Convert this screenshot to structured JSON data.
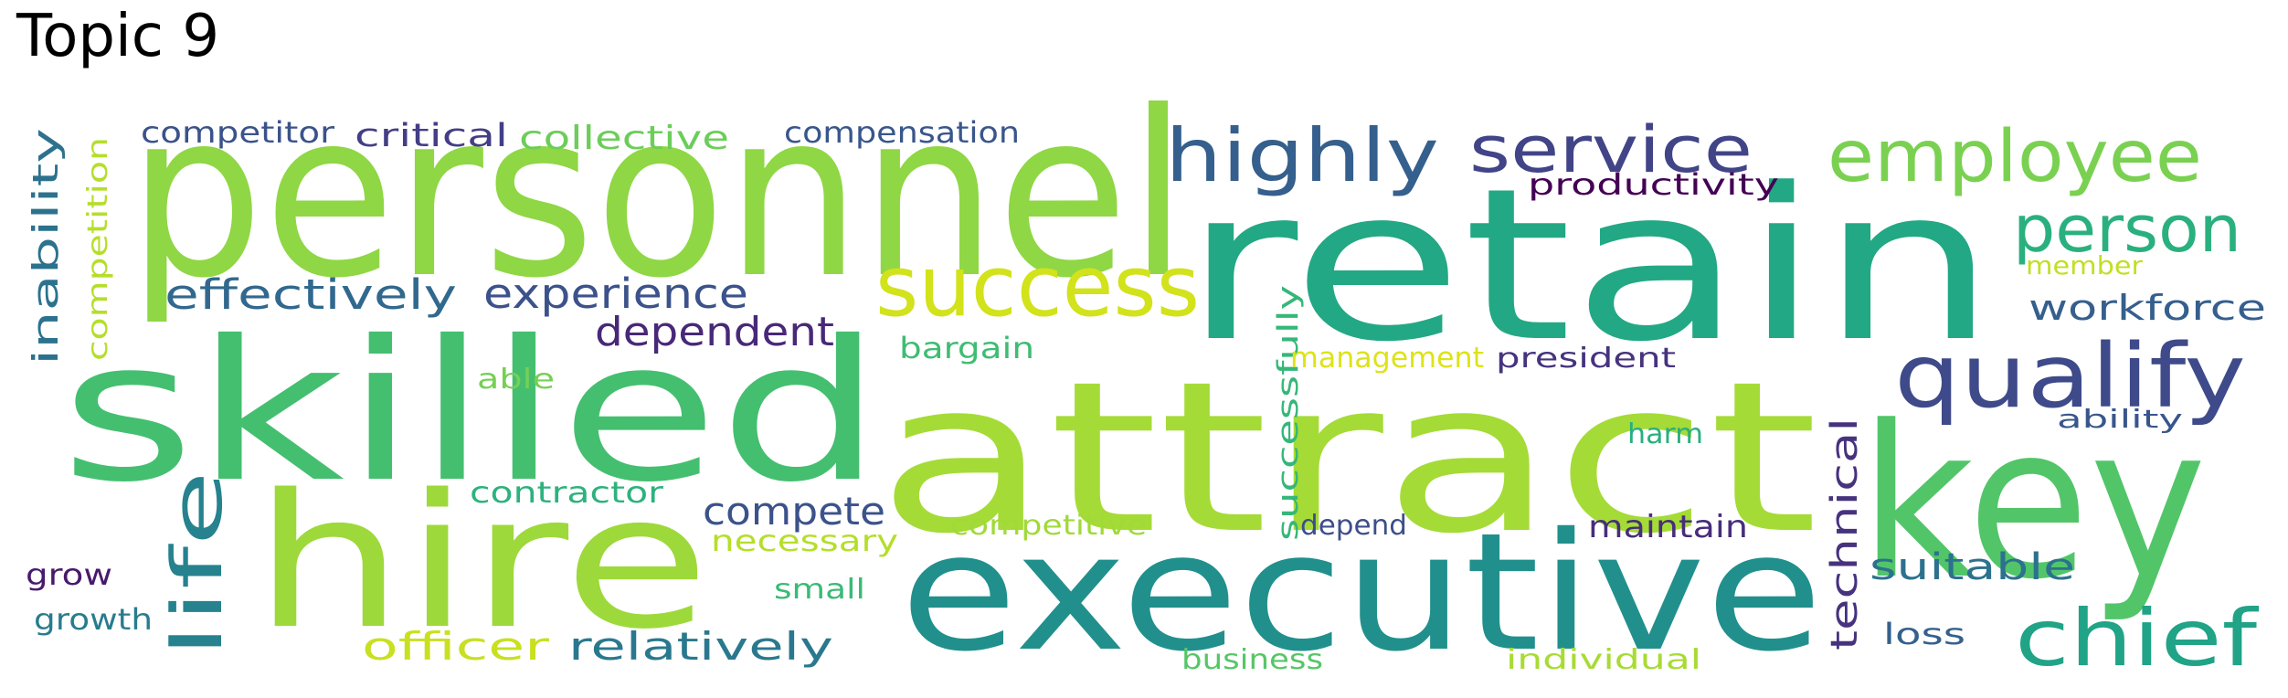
{
  "title": "Topic 9",
  "words": [
    {
      "text": "personnel",
      "color": "#8fd744"
    },
    {
      "text": "retain",
      "color": "#22a884"
    },
    {
      "text": "skilled",
      "color": "#44bf70"
    },
    {
      "text": "attract",
      "color": "#a5db36"
    },
    {
      "text": "key",
      "color": "#52c569"
    },
    {
      "text": "hire",
      "color": "#9dd93b"
    },
    {
      "text": "executive",
      "color": "#21908d"
    },
    {
      "text": "success",
      "color": "#d2e21b"
    },
    {
      "text": "highly",
      "color": "#355f8d"
    },
    {
      "text": "service",
      "color": "#414487"
    },
    {
      "text": "employee",
      "color": "#7ad151"
    },
    {
      "text": "person",
      "color": "#2ab07f"
    },
    {
      "text": "qualify",
      "color": "#3e4a89"
    },
    {
      "text": "chief",
      "color": "#20a386"
    },
    {
      "text": "life",
      "color": "#26828e"
    },
    {
      "text": "effectively",
      "color": "#31688e"
    },
    {
      "text": "experience",
      "color": "#3b528b"
    },
    {
      "text": "dependent",
      "color": "#482878"
    },
    {
      "text": "compete",
      "color": "#3b528b"
    },
    {
      "text": "officer",
      "color": "#c8e020"
    },
    {
      "text": "relatively",
      "color": "#2a788e"
    },
    {
      "text": "technical",
      "color": "#46327e"
    },
    {
      "text": "successfully",
      "color": "#35b779"
    },
    {
      "text": "workforce",
      "color": "#355f8d"
    },
    {
      "text": "suitable",
      "color": "#2c728e"
    },
    {
      "text": "inability",
      "color": "#2c728e"
    },
    {
      "text": "competition",
      "color": "#b5de2b"
    },
    {
      "text": "productivity",
      "color": "#440154"
    },
    {
      "text": "collective",
      "color": "#6ccd5a"
    },
    {
      "text": "critical",
      "color": "#433e85"
    },
    {
      "text": "competitor",
      "color": "#3b528b"
    },
    {
      "text": "compensation",
      "color": "#39568c"
    },
    {
      "text": "necessary",
      "color": "#b5de2b"
    },
    {
      "text": "maintain",
      "color": "#472d7b"
    },
    {
      "text": "management",
      "color": "#dde318"
    },
    {
      "text": "president",
      "color": "#46337e"
    },
    {
      "text": "member",
      "color": "#c2df23"
    },
    {
      "text": "ability",
      "color": "#39568c"
    },
    {
      "text": "bargain",
      "color": "#3fbc73"
    },
    {
      "text": "contractor",
      "color": "#2db27d"
    },
    {
      "text": "competitive",
      "color": "#a0da39"
    },
    {
      "text": "depend",
      "color": "#3d4e8a"
    },
    {
      "text": "harm",
      "color": "#29af7f"
    },
    {
      "text": "small",
      "color": "#3aba76"
    },
    {
      "text": "able",
      "color": "#75d054"
    },
    {
      "text": "grow",
      "color": "#481a6c"
    },
    {
      "text": "growth",
      "color": "#287c8e"
    },
    {
      "text": "business",
      "color": "#56c667"
    },
    {
      "text": "individual",
      "color": "#a8db34"
    },
    {
      "text": "loss",
      "color": "#34618d"
    }
  ]
}
